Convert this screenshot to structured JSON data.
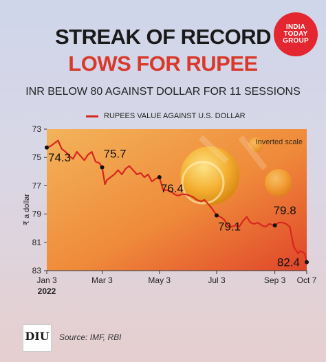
{
  "brand": {
    "logo_line1": "INDIA",
    "logo_line2": "TODAY",
    "logo_line3": "GROUP",
    "logo_color": "#e3262f"
  },
  "header": {
    "title_line1": "STREAK OF RECORD",
    "title_line2": "LOWS FOR RUPEE",
    "subtitle": "INR BELOW 80 AGAINST DOLLAR FOR 11 SESSIONS"
  },
  "footer": {
    "diu_logo": "DIU",
    "source": "Source: IMF, RBI"
  },
  "chart_data": {
    "type": "line",
    "title": "STREAK OF RECORD LOWS FOR RUPEE",
    "series": [
      {
        "name": "RUPEES VALUE AGAINST U.S. DOLLAR",
        "color": "#d7261e",
        "points": [
          [
            "2022-01-03",
            74.3
          ],
          [
            "2022-01-07",
            74.2
          ],
          [
            "2022-01-11",
            74.0
          ],
          [
            "2022-01-15",
            73.8
          ],
          [
            "2022-01-19",
            74.4
          ],
          [
            "2022-01-23",
            74.6
          ],
          [
            "2022-01-27",
            74.9
          ],
          [
            "2022-01-31",
            75.1
          ],
          [
            "2022-02-04",
            74.6
          ],
          [
            "2022-02-08",
            74.9
          ],
          [
            "2022-02-12",
            75.2
          ],
          [
            "2022-02-16",
            74.8
          ],
          [
            "2022-02-20",
            74.6
          ],
          [
            "2022-02-24",
            75.3
          ],
          [
            "2022-02-28",
            75.4
          ],
          [
            "2022-03-03",
            75.7
          ],
          [
            "2022-03-06",
            76.9
          ],
          [
            "2022-03-08",
            76.6
          ],
          [
            "2022-03-12",
            76.4
          ],
          [
            "2022-03-16",
            76.2
          ],
          [
            "2022-03-20",
            75.9
          ],
          [
            "2022-03-24",
            76.2
          ],
          [
            "2022-03-28",
            75.8
          ],
          [
            "2022-04-01",
            75.6
          ],
          [
            "2022-04-05",
            75.9
          ],
          [
            "2022-04-09",
            76.2
          ],
          [
            "2022-04-13",
            76.1
          ],
          [
            "2022-04-17",
            76.4
          ],
          [
            "2022-04-21",
            76.2
          ],
          [
            "2022-04-25",
            76.7
          ],
          [
            "2022-04-29",
            76.5
          ],
          [
            "2022-05-03",
            76.4
          ],
          [
            "2022-05-07",
            77.3
          ],
          [
            "2022-05-11",
            77.3
          ],
          [
            "2022-05-15",
            77.4
          ],
          [
            "2022-05-19",
            77.6
          ],
          [
            "2022-05-23",
            77.7
          ],
          [
            "2022-05-27",
            77.6
          ],
          [
            "2022-05-31",
            77.6
          ],
          [
            "2022-06-04",
            77.7
          ],
          [
            "2022-06-08",
            77.8
          ],
          [
            "2022-06-12",
            78.0
          ],
          [
            "2022-06-16",
            78.1
          ],
          [
            "2022-06-20",
            78.0
          ],
          [
            "2022-06-24",
            78.3
          ],
          [
            "2022-06-28",
            78.6
          ],
          [
            "2022-07-03",
            79.1
          ],
          [
            "2022-07-07",
            79.2
          ],
          [
            "2022-07-11",
            79.4
          ],
          [
            "2022-07-15",
            79.8
          ],
          [
            "2022-07-19",
            79.9
          ],
          [
            "2022-07-23",
            79.8
          ],
          [
            "2022-07-27",
            79.9
          ],
          [
            "2022-07-31",
            79.5
          ],
          [
            "2022-08-04",
            79.2
          ],
          [
            "2022-08-08",
            79.6
          ],
          [
            "2022-08-12",
            79.7
          ],
          [
            "2022-08-16",
            79.6
          ],
          [
            "2022-08-20",
            79.8
          ],
          [
            "2022-08-24",
            79.9
          ],
          [
            "2022-08-28",
            79.7
          ],
          [
            "2022-09-03",
            79.8
          ],
          [
            "2022-09-07",
            79.6
          ],
          [
            "2022-09-11",
            79.6
          ],
          [
            "2022-09-15",
            79.7
          ],
          [
            "2022-09-19",
            79.9
          ],
          [
            "2022-09-21",
            80.6
          ],
          [
            "2022-09-23",
            81.3
          ],
          [
            "2022-09-26",
            81.6
          ],
          [
            "2022-09-28",
            81.8
          ],
          [
            "2022-09-30",
            81.6
          ],
          [
            "2022-10-03",
            81.7
          ],
          [
            "2022-10-05",
            81.8
          ],
          [
            "2022-10-07",
            82.4
          ]
        ]
      }
    ],
    "annotations": [
      {
        "date": "2022-01-03",
        "value": 74.3,
        "label": "74.3"
      },
      {
        "date": "2022-03-03",
        "value": 75.7,
        "label": "75.7"
      },
      {
        "date": "2022-05-03",
        "value": 76.4,
        "label": "76.4"
      },
      {
        "date": "2022-07-03",
        "value": 79.1,
        "label": "79.1"
      },
      {
        "date": "2022-09-03",
        "value": 79.8,
        "label": "79.8"
      },
      {
        "date": "2022-10-07",
        "value": 82.4,
        "label": "82.4"
      }
    ],
    "xlabel": "",
    "ylabel": "₹ a dollar",
    "ylim": [
      73,
      83
    ],
    "y_inverted": true,
    "inverted_note": "Inverted scale",
    "yticks": [
      73,
      75,
      77,
      79,
      81,
      83
    ],
    "xticks": [
      {
        "date": "2022-01-03",
        "label": "Jan 3",
        "sub": "2022"
      },
      {
        "date": "2022-03-03",
        "label": "Mar 3",
        "sub": ""
      },
      {
        "date": "2022-05-03",
        "label": "May 3",
        "sub": ""
      },
      {
        "date": "2022-07-03",
        "label": "Jul 3",
        "sub": ""
      },
      {
        "date": "2022-09-03",
        "label": "Sep 3",
        "sub": ""
      },
      {
        "date": "2022-10-07",
        "label": "Oct 7",
        "sub": ""
      }
    ],
    "xlim": [
      "2022-01-03",
      "2022-10-07"
    ],
    "grid": false
  }
}
